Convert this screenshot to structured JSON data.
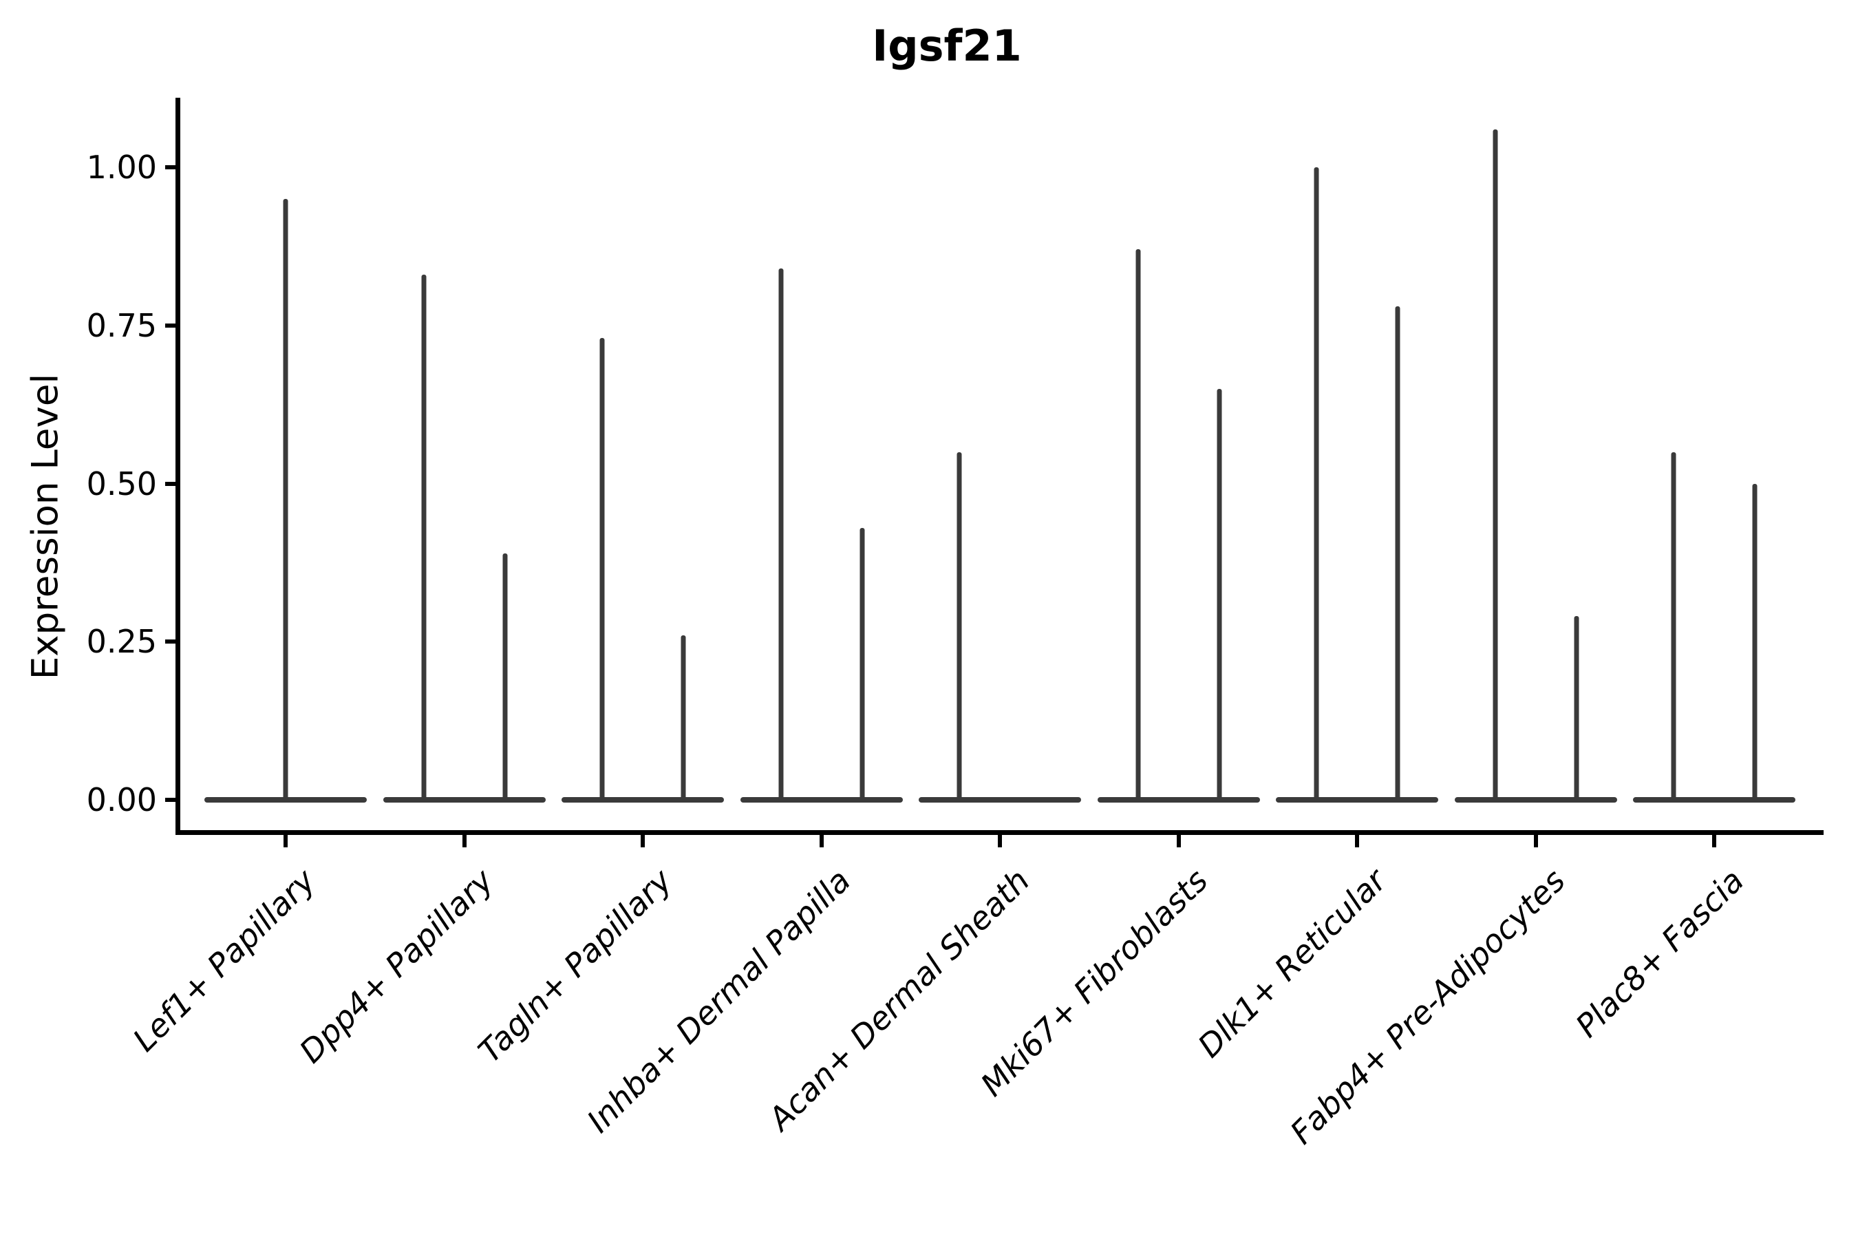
{
  "header": {
    "title": "Igsf21"
  },
  "colors": {
    "background": "#ffffff",
    "axis": "#000000",
    "violin": "#3a3a3a",
    "text": "#000000"
  },
  "chart_data": {
    "type": "violin",
    "title": "Igsf21",
    "xlabel": "",
    "ylabel": "Expression Level",
    "ylim": [
      0,
      1.11
    ],
    "grid": false,
    "legend": "none",
    "yticks": [
      0.0,
      0.25,
      0.5,
      0.75,
      1.0
    ],
    "ytick_labels": [
      "0.00",
      "0.25",
      "0.50",
      "0.75",
      "1.00"
    ],
    "categories": [
      "Lef1+ Papillary",
      "Dpp4+ Papillary",
      "Tagln+ Papillary",
      "Inhba+ Dermal Papilla",
      "Acan+ Dermal Sheath",
      "Mki67+ Fibroblasts",
      "Dlk1+ Reticular",
      "Fabp4+ Pre-Adipocytes",
      "Plac8+ Fascia"
    ],
    "description": "Violin plot of Igsf21 expression; each violin collapses to a flat base at 0 with a thin vertical spike reaching the maximum expression value.",
    "groups": [
      {
        "category": "Lef1+ Papillary",
        "violins": [
          {
            "position": "center",
            "max_expression": 0.95
          }
        ]
      },
      {
        "category": "Dpp4+ Papillary",
        "violins": [
          {
            "position": "left",
            "max_expression": 0.83
          },
          {
            "position": "right",
            "max_expression": 0.39
          }
        ]
      },
      {
        "category": "Tagln+ Papillary",
        "violins": [
          {
            "position": "left",
            "max_expression": 0.73
          },
          {
            "position": "right",
            "max_expression": 0.26
          }
        ]
      },
      {
        "category": "Inhba+ Dermal Papilla",
        "violins": [
          {
            "position": "left",
            "max_expression": 0.84
          },
          {
            "position": "right",
            "max_expression": 0.43
          }
        ]
      },
      {
        "category": "Acan+ Dermal Sheath",
        "violins": [
          {
            "position": "left",
            "max_expression": 0.55
          },
          {
            "position": "right",
            "max_expression": 0.0
          }
        ]
      },
      {
        "category": "Mki67+ Fibroblasts",
        "violins": [
          {
            "position": "left",
            "max_expression": 0.87
          },
          {
            "position": "right",
            "max_expression": 0.65
          }
        ]
      },
      {
        "category": "Dlk1+ Reticular",
        "violins": [
          {
            "position": "left",
            "max_expression": 1.0
          },
          {
            "position": "right",
            "max_expression": 0.78
          }
        ]
      },
      {
        "category": "Fabp4+ Pre-Adipocytes",
        "violins": [
          {
            "position": "left",
            "max_expression": 1.06
          },
          {
            "position": "right",
            "max_expression": 0.29
          }
        ]
      },
      {
        "category": "Plac8+ Fascia",
        "violins": [
          {
            "position": "left",
            "max_expression": 0.55
          },
          {
            "position": "right",
            "max_expression": 0.5
          }
        ]
      }
    ]
  }
}
